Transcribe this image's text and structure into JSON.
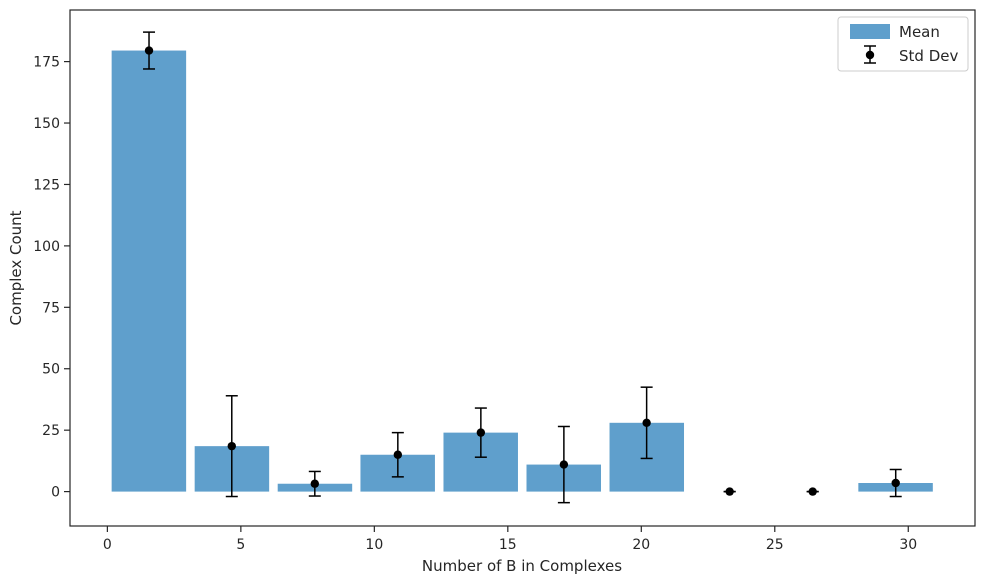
{
  "chart_data": {
    "type": "bar",
    "xlabel": "Number of B in Complexes",
    "ylabel": "Complex Count",
    "xlim": [
      -1.4,
      32.5
    ],
    "ylim": [
      -14,
      196
    ],
    "xticks": [
      0,
      5,
      10,
      15,
      20,
      25,
      30
    ],
    "yticks": [
      0,
      25,
      50,
      75,
      100,
      125,
      150,
      175
    ],
    "bar_colour": "#5f9fcc",
    "error_colour": "#000000",
    "grid": false,
    "legend_position": "top-right",
    "legend": {
      "mean": "Mean",
      "std": "Std Dev"
    },
    "bars": [
      {
        "start": 0.16,
        "end": 2.95,
        "mean": 179.5,
        "std": 7.5,
        "x": 1.56
      },
      {
        "start": 3.27,
        "end": 6.06,
        "mean": 18.5,
        "std": 20.5,
        "x": 4.66
      },
      {
        "start": 6.38,
        "end": 9.17,
        "mean": 3.2,
        "std": 5.0,
        "x": 7.77
      },
      {
        "start": 9.48,
        "end": 12.27,
        "mean": 15.0,
        "std": 9.0,
        "x": 10.88
      },
      {
        "start": 12.59,
        "end": 15.38,
        "mean": 24.0,
        "std": 10.0,
        "x": 13.99
      },
      {
        "start": 15.7,
        "end": 18.49,
        "mean": 11.0,
        "std": 15.5,
        "x": 17.1
      },
      {
        "start": 18.81,
        "end": 21.6,
        "mean": 28.0,
        "std": 14.5,
        "x": 20.2
      },
      {
        "start": 21.92,
        "end": 24.71,
        "mean": 0.0,
        "std": 0.0,
        "x": 23.31
      },
      {
        "start": 25.03,
        "end": 27.82,
        "mean": 0.0,
        "std": 0.0,
        "x": 26.42
      },
      {
        "start": 28.13,
        "end": 30.92,
        "mean": 3.5,
        "std": 5.5,
        "x": 29.53
      }
    ]
  }
}
